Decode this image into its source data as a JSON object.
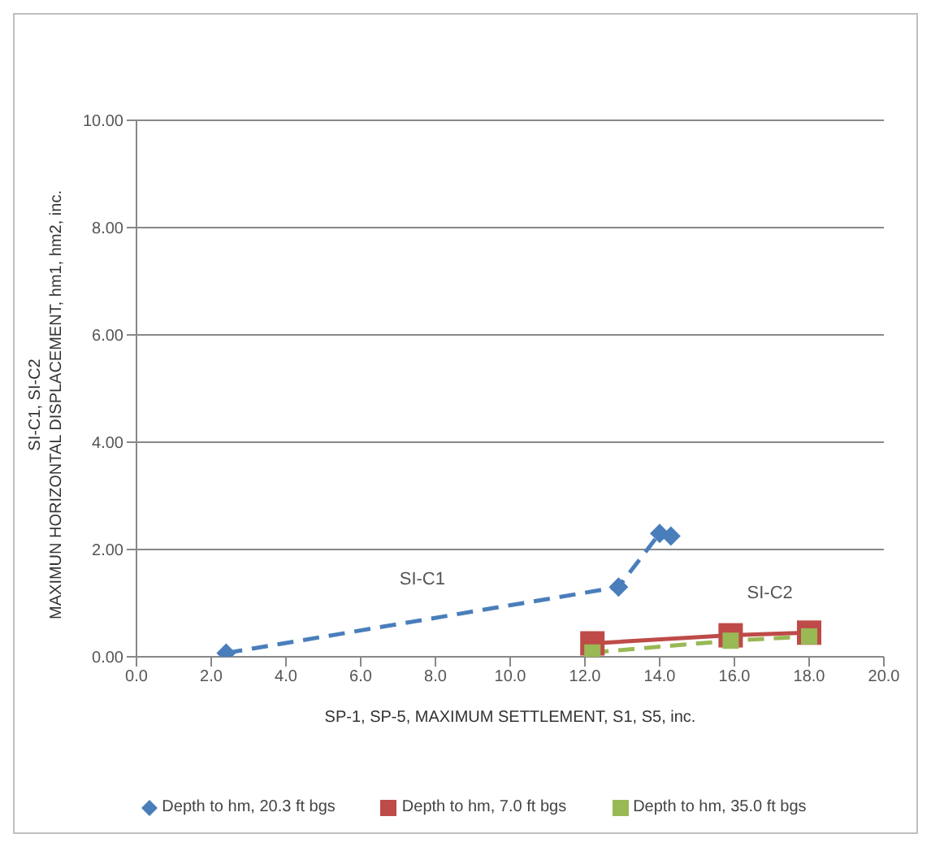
{
  "chart_data": {
    "type": "line",
    "xlabel": "SP-1, SP-5, MAXIMUM SETTLEMENT, S1, S5, inc.",
    "ylabel": "SI-C1, SI-C2\nMAXIMUN HORIZONTAL DISPLACEMENT, hm1, hm2, inc.",
    "xlim": [
      0,
      20
    ],
    "xticks": [
      {
        "value": 0,
        "label": "0.0"
      },
      {
        "value": 2,
        "label": "2.0"
      },
      {
        "value": 4,
        "label": "4.0"
      },
      {
        "value": 6,
        "label": "6.0"
      },
      {
        "value": 8,
        "label": "8.0"
      },
      {
        "value": 10,
        "label": "10.0"
      },
      {
        "value": 12,
        "label": "12.0"
      },
      {
        "value": 14,
        "label": "14.0"
      },
      {
        "value": 16,
        "label": "16.0"
      },
      {
        "value": 18,
        "label": "18.0"
      },
      {
        "value": 20,
        "label": "20.0"
      }
    ],
    "ylim": [
      0,
      10
    ],
    "yticks": [
      {
        "value": 0,
        "label": "0.00"
      },
      {
        "value": 2,
        "label": "2.00"
      },
      {
        "value": 4,
        "label": "4.00"
      },
      {
        "value": 6,
        "label": "6.00"
      },
      {
        "value": 8,
        "label": "8.00"
      },
      {
        "value": 10,
        "label": "10.00"
      }
    ],
    "grid": "y",
    "legend": "bottom",
    "series": [
      {
        "name": "Depth to hm, 20.3 ft bgs",
        "color": "#4a7ebb",
        "x": [
          2.4,
          12.9,
          14.0,
          14.3
        ],
        "values": [
          0.07,
          1.3,
          2.3,
          2.25
        ],
        "marker": "diamond",
        "line_style": "dashed"
      },
      {
        "name": "Depth to hm, 7.0 ft bgs",
        "color": "#be4b48",
        "x": [
          12.2,
          15.9,
          18.0
        ],
        "values": [
          0.25,
          0.4,
          0.45
        ],
        "marker": "square",
        "line_style": "solid"
      },
      {
        "name": "Depth to hm, 35.0 ft bgs",
        "color": "#98b954",
        "x": [
          12.2,
          15.9,
          18.0
        ],
        "values": [
          0.08,
          0.3,
          0.38
        ],
        "marker": "square",
        "line_style": "dashed"
      }
    ],
    "annotations": [
      "SI-C1",
      "SI-C2"
    ]
  }
}
